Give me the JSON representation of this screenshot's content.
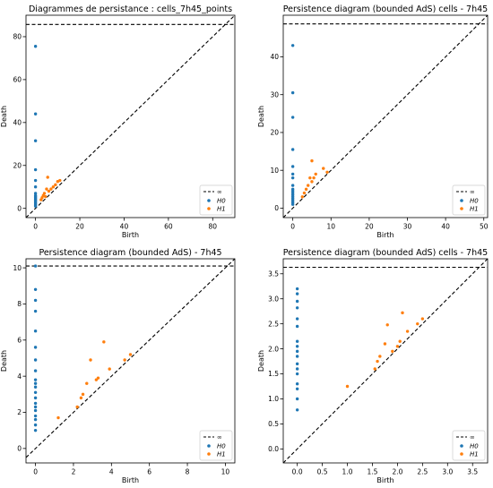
{
  "chart_data": [
    {
      "type": "scatter",
      "title": "Diagrammes de persistance : cells_7h45_points",
      "xlabel": "Birth",
      "ylabel": "Death",
      "xlim": [
        -4.3,
        90
      ],
      "ylim": [
        -4.3,
        90
      ],
      "xticks": [
        0,
        20,
        40,
        60,
        80
      ],
      "yticks": [
        0,
        20,
        40,
        60,
        80
      ],
      "infinity_y": 85.7,
      "legend": {
        "position": "bottom-right",
        "entries": [
          "∞",
          "H0",
          "H1"
        ]
      },
      "series": [
        {
          "name": "H0",
          "color": "#1f77b4",
          "points": [
            [
              0,
              75.5
            ],
            [
              0,
              44
            ],
            [
              0,
              31.5
            ],
            [
              0,
              18
            ],
            [
              0,
              13
            ],
            [
              0,
              10
            ],
            [
              0,
              7
            ],
            [
              0,
              6
            ],
            [
              0,
              5.5
            ],
            [
              0,
              5
            ],
            [
              0,
              4.5
            ],
            [
              0,
              4
            ],
            [
              0,
              3.5
            ],
            [
              0,
              3
            ],
            [
              0,
              2.5
            ],
            [
              0,
              2
            ],
            [
              0,
              1.5
            ],
            [
              0,
              1
            ]
          ]
        },
        {
          "name": "H1",
          "color": "#ff7f0e",
          "points": [
            [
              2.5,
              4
            ],
            [
              3,
              5
            ],
            [
              3.5,
              6
            ],
            [
              4,
              7
            ],
            [
              4.5,
              5.5
            ],
            [
              5,
              9
            ],
            [
              5.5,
              14.5
            ],
            [
              6,
              8
            ],
            [
              7,
              9
            ],
            [
              8,
              10
            ],
            [
              9,
              11
            ],
            [
              10,
              12.5
            ],
            [
              11,
              13
            ]
          ]
        }
      ]
    },
    {
      "type": "scatter",
      "title": "Persistence diagram (bounded AdS) cells - 7h45",
      "xlabel": "Birth",
      "ylabel": "Death",
      "xlim": [
        -2.5,
        51
      ],
      "ylim": [
        -2.5,
        51
      ],
      "xticks": [
        0,
        10,
        20,
        30,
        40,
        50
      ],
      "yticks": [
        0,
        10,
        20,
        30,
        40
      ],
      "infinity_y": 48.7,
      "legend": {
        "position": "bottom-right",
        "entries": [
          "∞",
          "H0",
          "H1"
        ]
      },
      "series": [
        {
          "name": "H0",
          "color": "#1f77b4",
          "points": [
            [
              0,
              43
            ],
            [
              0,
              30.5
            ],
            [
              0,
              24
            ],
            [
              0,
              15.5
            ],
            [
              0,
              11
            ],
            [
              0,
              9
            ],
            [
              0,
              8
            ],
            [
              0,
              6
            ],
            [
              0,
              5
            ],
            [
              0,
              4.5
            ],
            [
              0,
              4
            ],
            [
              0,
              3.5
            ],
            [
              0,
              3
            ],
            [
              0,
              2.5
            ],
            [
              0,
              2
            ],
            [
              0,
              1.5
            ],
            [
              0,
              1
            ]
          ]
        },
        {
          "name": "H1",
          "color": "#ff7f0e",
          "points": [
            [
              2.5,
              3
            ],
            [
              3,
              4
            ],
            [
              3.5,
              5
            ],
            [
              4,
              6
            ],
            [
              4.5,
              8
            ],
            [
              5,
              12.5
            ],
            [
              5,
              7
            ],
            [
              5.5,
              8
            ],
            [
              6,
              9
            ],
            [
              8,
              10.5
            ],
            [
              9,
              9.5
            ]
          ]
        }
      ]
    },
    {
      "type": "scatter",
      "title": "Persistence diagram (bounded AdS) - 7h45",
      "xlabel": "Birth",
      "ylabel": "Death",
      "xlim": [
        -0.5,
        10.5
      ],
      "ylim": [
        -0.8,
        10.5
      ],
      "xticks": [
        0,
        2,
        4,
        6,
        8,
        10
      ],
      "yticks": [
        0,
        2,
        4,
        6,
        8,
        10
      ],
      "infinity_y": 10.1,
      "legend": {
        "position": "bottom-right",
        "entries": [
          "∞",
          "H0",
          "H1"
        ]
      },
      "series": [
        {
          "name": "H0",
          "color": "#1f77b4",
          "points": [
            [
              0,
              10.1
            ],
            [
              0,
              8.8
            ],
            [
              0,
              8.2
            ],
            [
              0,
              7.6
            ],
            [
              0,
              6.5
            ],
            [
              0,
              5.6
            ],
            [
              0,
              4.9
            ],
            [
              0,
              4.3
            ],
            [
              0,
              3.8
            ],
            [
              0,
              3.6
            ],
            [
              0,
              3.4
            ],
            [
              0,
              3.1
            ],
            [
              0,
              2.8
            ],
            [
              0,
              2.5
            ],
            [
              0,
              2.3
            ],
            [
              0,
              2.1
            ],
            [
              0,
              1.8
            ],
            [
              0,
              1.6
            ],
            [
              0,
              1.3
            ],
            [
              0,
              1.0
            ]
          ]
        },
        {
          "name": "H1",
          "color": "#ff7f0e",
          "points": [
            [
              1.2,
              1.7
            ],
            [
              2.2,
              2.3
            ],
            [
              2.4,
              2.8
            ],
            [
              2.5,
              3.0
            ],
            [
              2.7,
              3.6
            ],
            [
              2.9,
              4.9
            ],
            [
              3.2,
              3.8
            ],
            [
              3.3,
              3.9
            ],
            [
              3.6,
              5.9
            ],
            [
              3.9,
              4.4
            ],
            [
              4.7,
              4.9
            ],
            [
              5.0,
              5.2
            ]
          ]
        }
      ]
    },
    {
      "type": "scatter",
      "title": "Persistence diagram (bounded AdS) cells - 7h45",
      "xlabel": "Birth",
      "ylabel": "Death",
      "xlim": [
        -0.28,
        3.8
      ],
      "ylim": [
        -0.28,
        3.8
      ],
      "xticks": [
        0.0,
        0.5,
        1.0,
        1.5,
        2.0,
        2.5,
        3.0,
        3.5
      ],
      "yticks": [
        0.0,
        0.5,
        1.0,
        1.5,
        2.0,
        2.5,
        3.0,
        3.5
      ],
      "infinity_y": 3.63,
      "legend": {
        "position": "bottom-right",
        "entries": [
          "∞",
          "H0",
          "H1"
        ]
      },
      "series": [
        {
          "name": "H0",
          "color": "#1f77b4",
          "points": [
            [
              0,
              3.2
            ],
            [
              0,
              3.1
            ],
            [
              0,
              2.95
            ],
            [
              0,
              2.82
            ],
            [
              0,
              2.6
            ],
            [
              0,
              2.45
            ],
            [
              0,
              2.15
            ],
            [
              0,
              2.05
            ],
            [
              0,
              1.95
            ],
            [
              0,
              1.85
            ],
            [
              0,
              1.7
            ],
            [
              0,
              1.6
            ],
            [
              0,
              1.5
            ],
            [
              0,
              1.3
            ],
            [
              0,
              1.2
            ],
            [
              0,
              1.0
            ],
            [
              0,
              0.78
            ]
          ]
        },
        {
          "name": "H1",
          "color": "#ff7f0e",
          "points": [
            [
              1.0,
              1.25
            ],
            [
              1.55,
              1.6
            ],
            [
              1.6,
              1.75
            ],
            [
              1.65,
              1.85
            ],
            [
              1.75,
              2.1
            ],
            [
              1.8,
              2.48
            ],
            [
              1.9,
              1.95
            ],
            [
              2.0,
              2.05
            ],
            [
              2.05,
              2.15
            ],
            [
              2.1,
              2.72
            ],
            [
              2.2,
              2.35
            ],
            [
              2.4,
              2.5
            ],
            [
              2.5,
              2.6
            ]
          ]
        }
      ]
    }
  ]
}
